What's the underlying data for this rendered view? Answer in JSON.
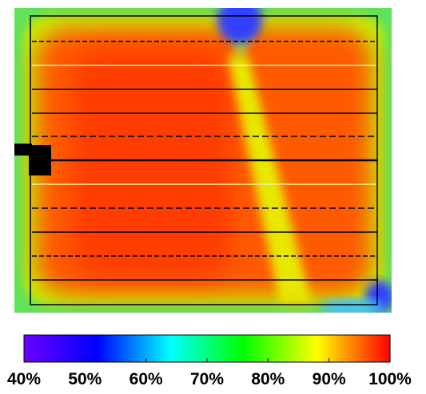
{
  "colorbar": {
    "range": [
      40,
      100
    ],
    "colors": [
      "#6a00ff",
      "#0000ff",
      "#00ffff",
      "#00ff00",
      "#ffff00",
      "#ff0000"
    ],
    "ticks": [
      {
        "value": 40,
        "label": "40%"
      },
      {
        "value": 50,
        "label": "50%"
      },
      {
        "value": 60,
        "label": "60%"
      },
      {
        "value": 70,
        "label": "70%"
      },
      {
        "value": 80,
        "label": "80%"
      },
      {
        "value": 90,
        "label": "90%"
      },
      {
        "value": 100,
        "label": "100%"
      }
    ]
  }
}
